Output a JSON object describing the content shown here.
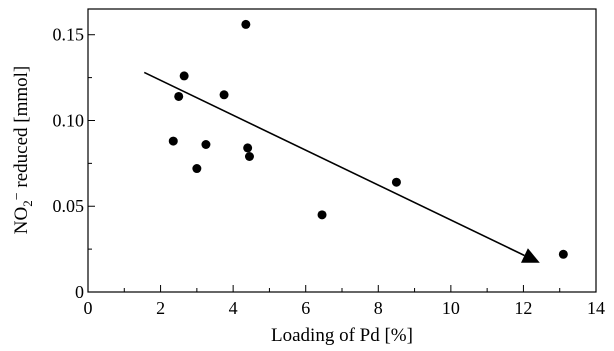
{
  "chart_data": {
    "type": "scatter",
    "title": "",
    "xlabel": "Loading of Pd [%]",
    "ylabel": {
      "base": "NO",
      "sub": "2",
      "sup": "−",
      "rest": " reduced [mmol]"
    },
    "xlim": [
      0,
      14
    ],
    "ylim": [
      0,
      0.165
    ],
    "xticks": [
      {
        "value": 0,
        "label": "0"
      },
      {
        "value": 2,
        "label": "2"
      },
      {
        "value": 4,
        "label": "4"
      },
      {
        "value": 6,
        "label": "6"
      },
      {
        "value": 8,
        "label": "8"
      },
      {
        "value": 10,
        "label": "10"
      },
      {
        "value": 12,
        "label": "12"
      },
      {
        "value": 14,
        "label": "14"
      }
    ],
    "xminor_ticks": [
      1,
      3,
      5,
      7,
      9,
      11,
      13
    ],
    "yticks": [
      {
        "value": 0,
        "label": "0"
      },
      {
        "value": 0.05,
        "label": "0.05"
      },
      {
        "value": 0.1,
        "label": "0.10"
      },
      {
        "value": 0.15,
        "label": "0.15"
      }
    ],
    "yminor_ticks": [
      0.025,
      0.075,
      0.125
    ],
    "grid": false,
    "series": [
      {
        "points": [
          {
            "x": 2.35,
            "y": 0.088
          },
          {
            "x": 2.5,
            "y": 0.114
          },
          {
            "x": 2.65,
            "y": 0.126
          },
          {
            "x": 3.0,
            "y": 0.072
          },
          {
            "x": 3.25,
            "y": 0.086
          },
          {
            "x": 3.75,
            "y": 0.115
          },
          {
            "x": 4.35,
            "y": 0.156
          },
          {
            "x": 4.4,
            "y": 0.084
          },
          {
            "x": 4.45,
            "y": 0.079
          },
          {
            "x": 6.45,
            "y": 0.045
          },
          {
            "x": 8.5,
            "y": 0.064
          },
          {
            "x": 13.1,
            "y": 0.022
          }
        ]
      }
    ],
    "trend_arrow": {
      "from": {
        "x": 1.55,
        "y": 0.128
      },
      "to": {
        "x": 12.45,
        "y": 0.017
      }
    },
    "colors": {
      "marker": "#000000",
      "axis": "#000000",
      "line": "#000000"
    }
  }
}
